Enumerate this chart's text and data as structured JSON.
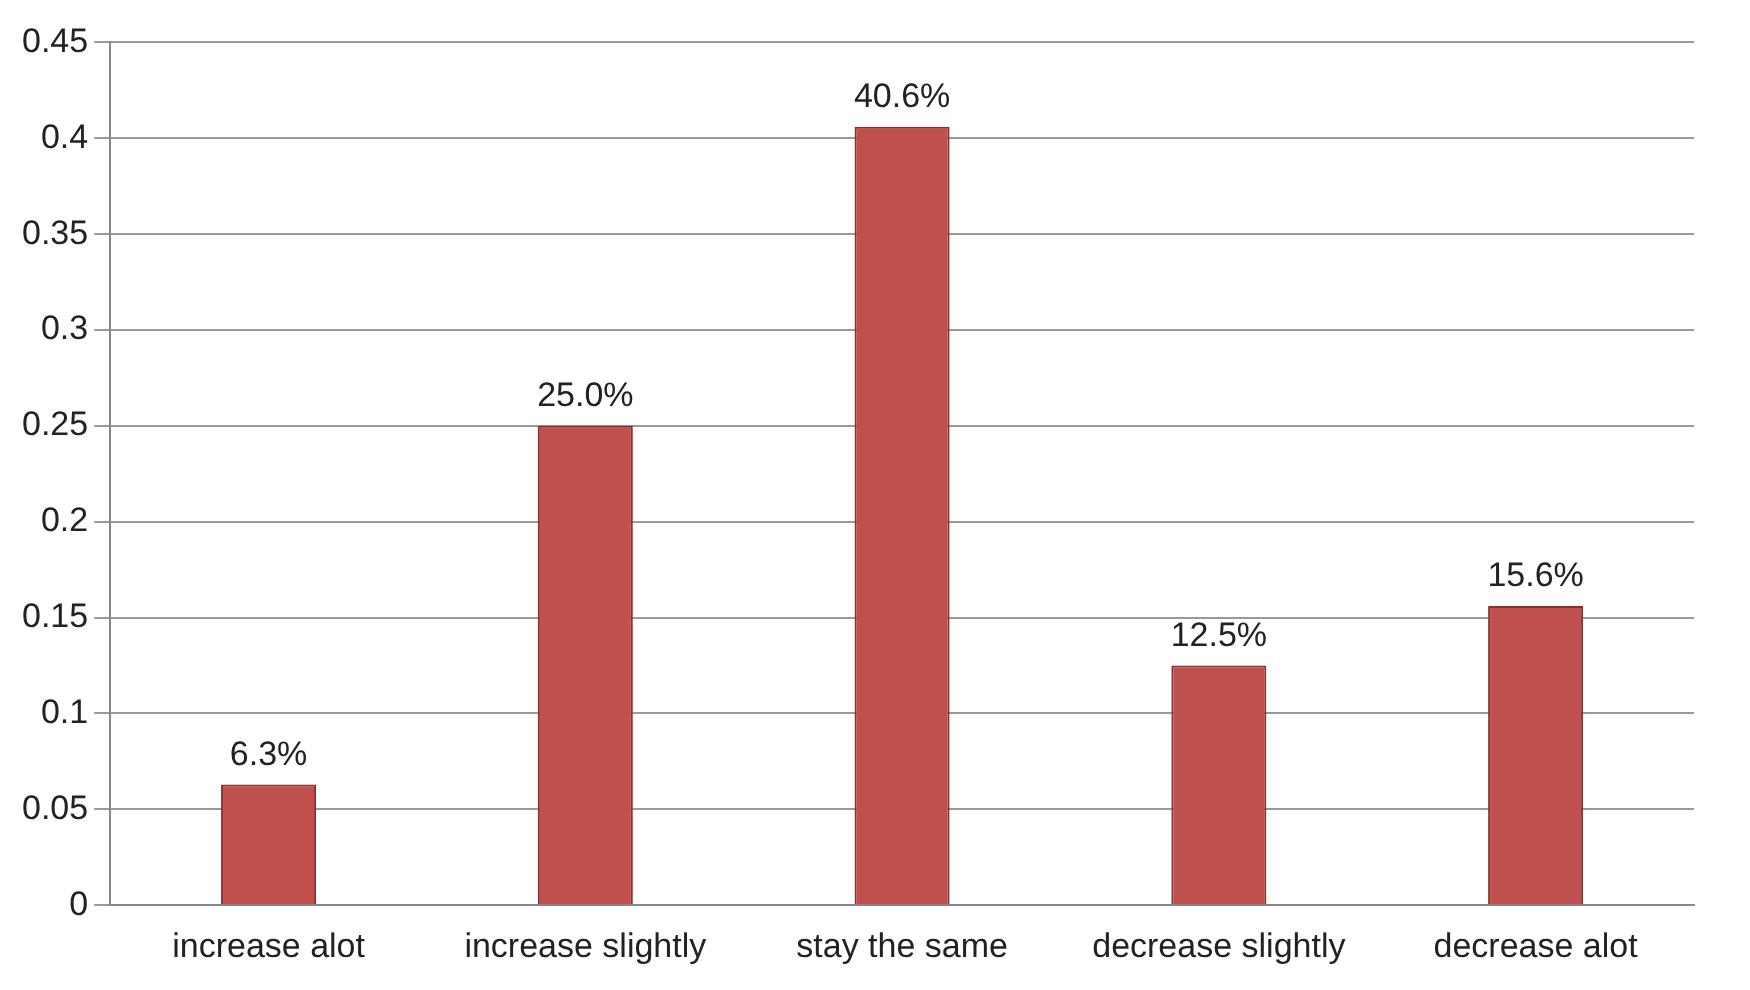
{
  "chart_data": {
    "type": "bar",
    "categories": [
      "increase alot",
      "increase slightly",
      "stay the same",
      "decrease slightly",
      "decrease alot"
    ],
    "values": [
      0.063,
      0.25,
      0.406,
      0.125,
      0.156
    ],
    "value_labels": [
      "6.3%",
      "25.0%",
      "40.6%",
      "12.5%",
      "15.6%"
    ],
    "color": "#c0504d",
    "ylim": [
      0,
      0.45
    ],
    "yticks": [
      0,
      0.05,
      0.1,
      0.15,
      0.2,
      0.25,
      0.3,
      0.35,
      0.4,
      0.45
    ],
    "grid": "y",
    "legend": false
  }
}
